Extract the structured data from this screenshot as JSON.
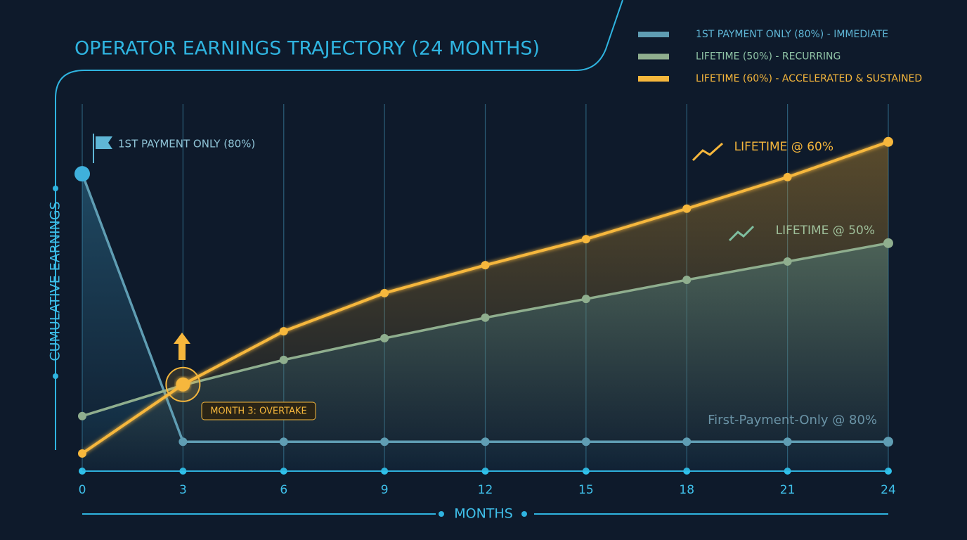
{
  "chart_data": {
    "type": "line",
    "title": "OPERATOR EARNINGS TRAJECTORY (24 MONTHS)",
    "x_label": "MONTHS",
    "y_label": "CUMULATIVE EARNINGS",
    "x": [
      0,
      3,
      6,
      9,
      12,
      15,
      18,
      21,
      24
    ],
    "xlim": [
      0,
      24
    ],
    "xticks": [
      0,
      3,
      6,
      9,
      12,
      15,
      18,
      21,
      24
    ],
    "ylim": [
      0,
      100
    ],
    "grid": true,
    "legend": "top-right",
    "legend_labels": [
      "1ST PAYMENT ONLY (80%) - IMMEDIATE",
      "LIFETIME (50%) - RECURRING",
      "LIFETIME (60%) - ACCELERATED & SUSTAINED"
    ],
    "series": [
      {
        "name": "First-Payment-Only @ 80%",
        "color": "#5f9db3",
        "values": [
          81,
          8,
          8,
          8,
          8,
          8,
          8,
          8,
          8
        ]
      },
      {
        "name": "LIFETIME @ 50%",
        "color": "#8fae8e",
        "values": [
          15,
          23.4,
          30.3,
          36.2,
          41.8,
          46.9,
          52.1,
          57.1,
          62.1
        ]
      },
      {
        "name": "LIFETIME @ 60%",
        "color": "#f6b73c",
        "values": [
          4.8,
          23.6,
          38.1,
          48.5,
          56.1,
          63.2,
          71.5,
          80.1,
          89.7
        ]
      }
    ],
    "annotations": [
      "1ST PAYMENT ONLY (80%)",
      "MONTH 3: OVERTAKE"
    ]
  }
}
